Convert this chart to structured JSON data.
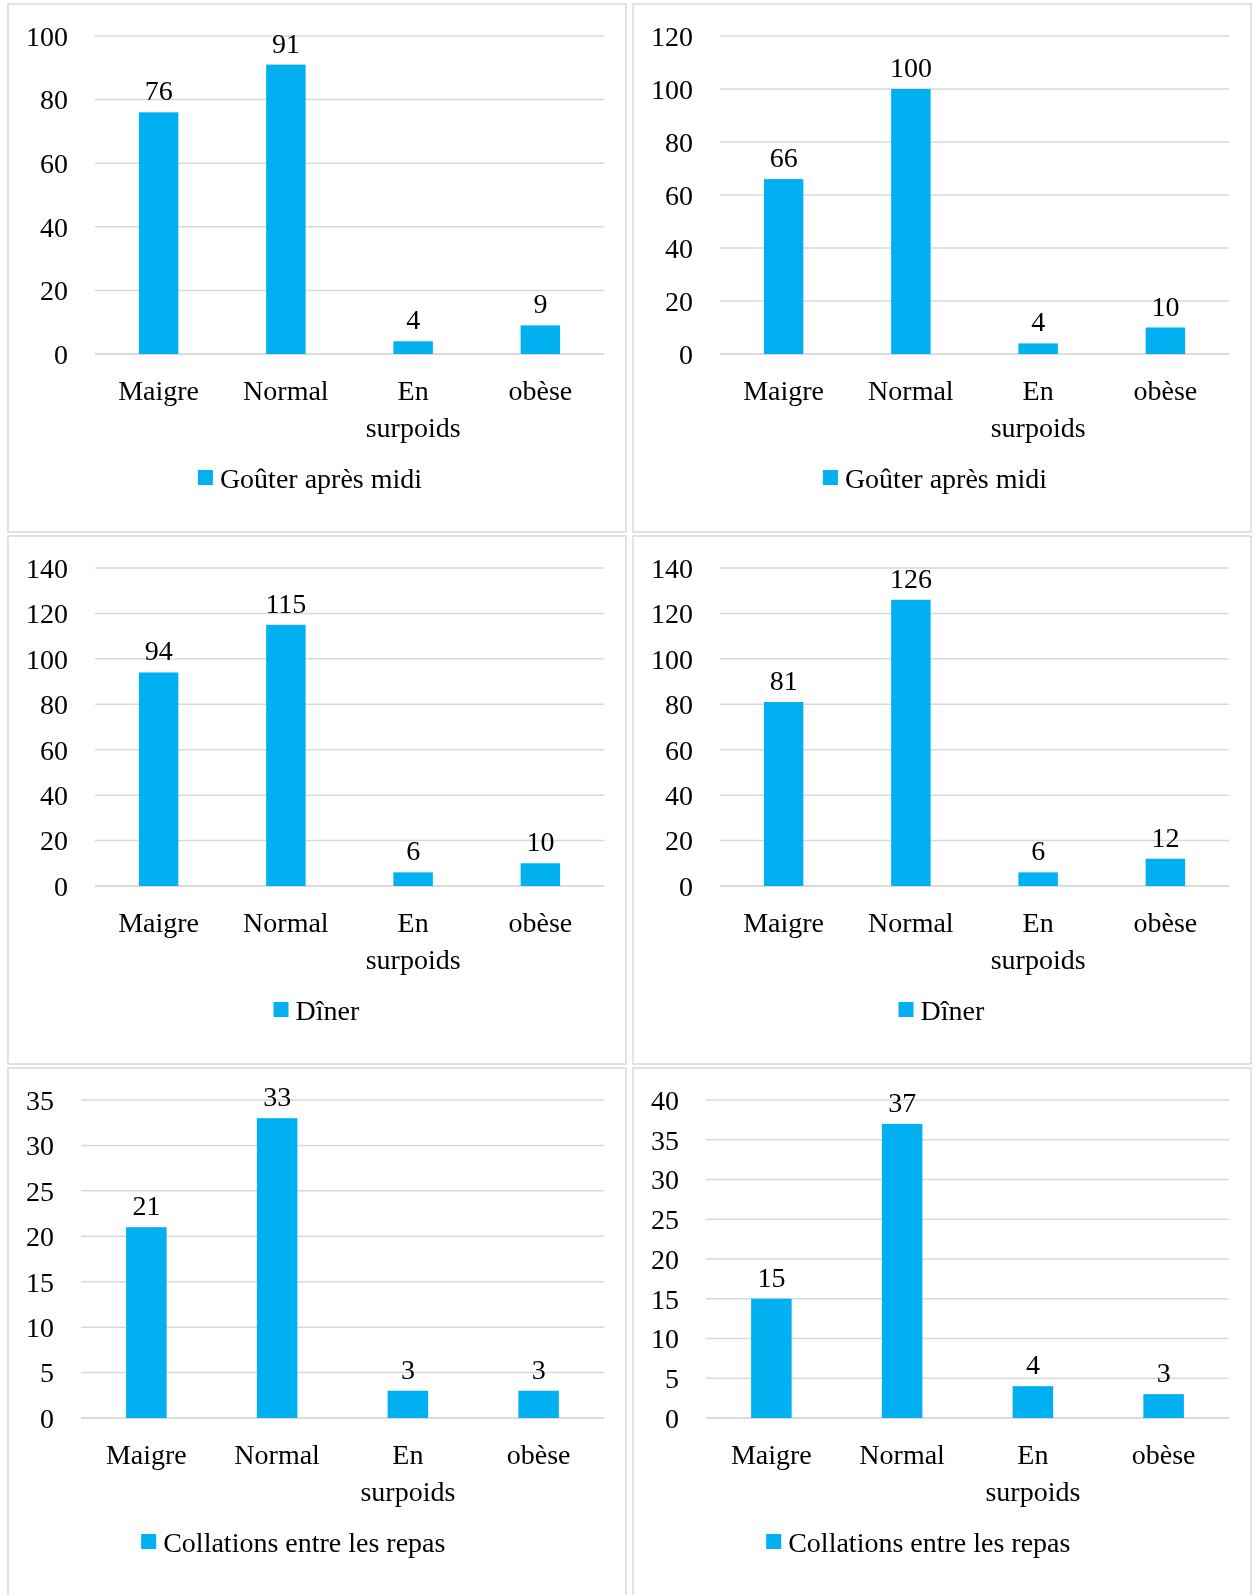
{
  "chart_data": [
    {
      "type": "bar",
      "categories": [
        "Maigre",
        "Normal",
        "En surpoids",
        "obèse"
      ],
      "series": [
        {
          "name": "Goûter après midi",
          "color": "#00b0f0",
          "values": [
            76,
            91,
            4,
            9
          ]
        }
      ],
      "ylim": [
        0,
        100
      ],
      "yticks": [
        0,
        20,
        40,
        60,
        80,
        100
      ],
      "grid": "y",
      "data_labels": true,
      "legend": "bottom"
    },
    {
      "type": "bar",
      "categories": [
        "Maigre",
        "Normal",
        "En surpoids",
        "obèse"
      ],
      "series": [
        {
          "name": "Goûter après midi",
          "color": "#00b0f0",
          "values": [
            66,
            100,
            4,
            10
          ]
        }
      ],
      "ylim": [
        0,
        120
      ],
      "yticks": [
        0,
        20,
        40,
        60,
        80,
        100,
        120
      ],
      "grid": "y",
      "data_labels": true,
      "legend": "bottom"
    },
    {
      "type": "bar",
      "categories": [
        "Maigre",
        "Normal",
        "En surpoids",
        "obèse"
      ],
      "series": [
        {
          "name": "Dîner",
          "color": "#00b0f0",
          "values": [
            94,
            115,
            6,
            10
          ]
        }
      ],
      "ylim": [
        0,
        140
      ],
      "yticks": [
        0,
        20,
        40,
        60,
        80,
        100,
        120,
        140
      ],
      "grid": "y",
      "data_labels": true,
      "legend": "bottom"
    },
    {
      "type": "bar",
      "categories": [
        "Maigre",
        "Normal",
        "En surpoids",
        "obèse"
      ],
      "series": [
        {
          "name": "Dîner",
          "color": "#00b0f0",
          "values": [
            81,
            126,
            6,
            12
          ]
        }
      ],
      "ylim": [
        0,
        140
      ],
      "yticks": [
        0,
        20,
        40,
        60,
        80,
        100,
        120,
        140
      ],
      "grid": "y",
      "data_labels": true,
      "legend": "bottom"
    },
    {
      "type": "bar",
      "categories": [
        "Maigre",
        "Normal",
        "En surpoids",
        "obèse"
      ],
      "series": [
        {
          "name": "Collations entre les repas",
          "color": "#00b0f0",
          "values": [
            21,
            33,
            3,
            3
          ]
        }
      ],
      "ylim": [
        0,
        35
      ],
      "yticks": [
        0,
        5,
        10,
        15,
        20,
        25,
        30,
        35
      ],
      "grid": "y",
      "data_labels": true,
      "legend": "bottom"
    },
    {
      "type": "bar",
      "categories": [
        "Maigre",
        "Normal",
        "En surpoids",
        "obèse"
      ],
      "series": [
        {
          "name": "Collations entre les repas",
          "color": "#00b0f0",
          "values": [
            15,
            37,
            4,
            3
          ]
        }
      ],
      "ylim": [
        0,
        40
      ],
      "yticks": [
        0,
        5,
        10,
        15,
        20,
        25,
        30,
        35,
        40
      ],
      "grid": "y",
      "data_labels": true,
      "legend": "bottom"
    }
  ]
}
